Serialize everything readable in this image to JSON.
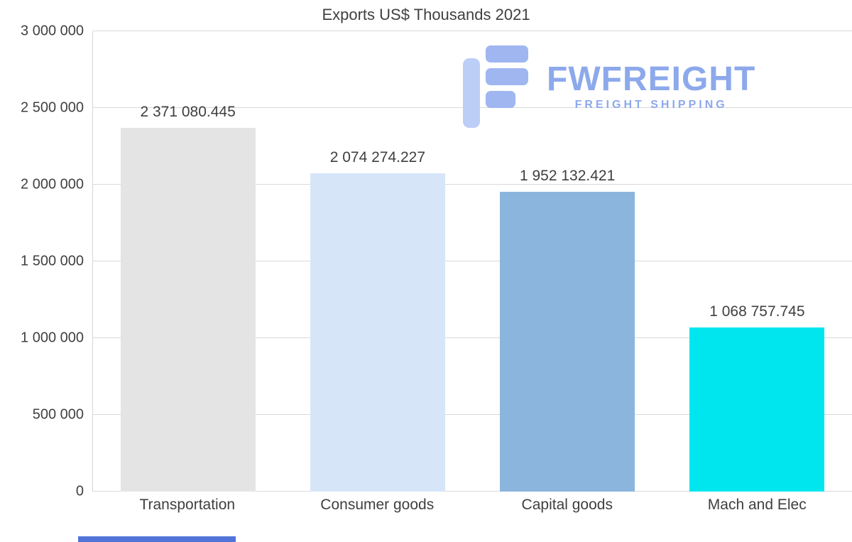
{
  "title": "Exports US$ Thousands 2021",
  "watermark": {
    "brand": "FWFREIGHT",
    "tagline": "FREIGHT SHIPPING",
    "text_color": "#8da9ec",
    "icon_color_light": "#bccdf6",
    "icon_color_dark": "#9fb6f0"
  },
  "chart_data": {
    "type": "bar",
    "title": "Exports US$ Thousands 2021",
    "categories": [
      "Transportation",
      "Consumer goods",
      "Capital goods",
      "Mach and Elec"
    ],
    "values": [
      2371080.445,
      2074274.227,
      1952132.421,
      1068757.745
    ],
    "value_labels": [
      "2 371 080.445",
      "2 074 274.227",
      "1 952 132.421",
      "1 068 757.745"
    ],
    "bar_colors": [
      "#e4e4e4",
      "#d6e6f8",
      "#8bb5dd",
      "#00e6ef"
    ],
    "xlabel": "",
    "ylabel": "",
    "ylim": [
      0,
      3000000
    ],
    "yticks": [
      0,
      500000,
      1000000,
      1500000,
      2000000,
      2500000,
      3000000
    ],
    "ytick_labels": [
      "0",
      "500 000",
      "1 000 000",
      "1 500 000",
      "2 000 000",
      "2 500 000",
      "3 000 000"
    ],
    "grid": true,
    "legend": "none",
    "gridline_color": "#d9d9d9",
    "label_color": "#3f3f3f"
  },
  "footer": {
    "accent_color": "#5273d8"
  }
}
